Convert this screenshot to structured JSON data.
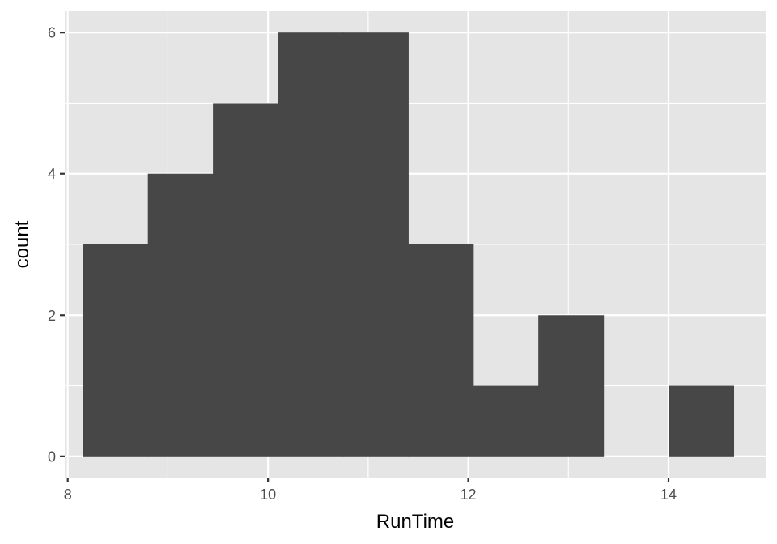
{
  "chart_data": {
    "type": "bar",
    "subtype": "histogram",
    "xlabel": "RunTime",
    "ylabel": "count",
    "xlim": [
      7.97,
      14.97
    ],
    "ylim": [
      -0.3,
      6.3
    ],
    "x_ticks": [
      8,
      10,
      12,
      14
    ],
    "x_tick_labels": [
      "8",
      "10",
      "12",
      "14"
    ],
    "y_ticks": [
      0,
      2,
      4,
      6
    ],
    "y_tick_labels": [
      "0",
      "2",
      "4",
      "6"
    ],
    "grid": true,
    "bins": [
      {
        "x0": 8.15,
        "x1": 8.8,
        "count": 3
      },
      {
        "x0": 8.8,
        "x1": 9.45,
        "count": 4
      },
      {
        "x0": 9.45,
        "x1": 10.1,
        "count": 5
      },
      {
        "x0": 10.1,
        "x1": 10.75,
        "count": 6
      },
      {
        "x0": 10.75,
        "x1": 11.4,
        "count": 6
      },
      {
        "x0": 11.4,
        "x1": 12.05,
        "count": 3
      },
      {
        "x0": 12.05,
        "x1": 12.7,
        "count": 1
      },
      {
        "x0": 12.7,
        "x1": 13.35,
        "count": 2
      },
      {
        "x0": 13.35,
        "x1": 14.0,
        "count": 0
      },
      {
        "x0": 14.0,
        "x1": 14.65,
        "count": 1
      }
    ],
    "colors": {
      "panel": "#e5e5e5",
      "bar": "#474747",
      "grid": "#ffffff",
      "tick_label": "#4d4d4d",
      "axis_title": "#000000"
    }
  }
}
